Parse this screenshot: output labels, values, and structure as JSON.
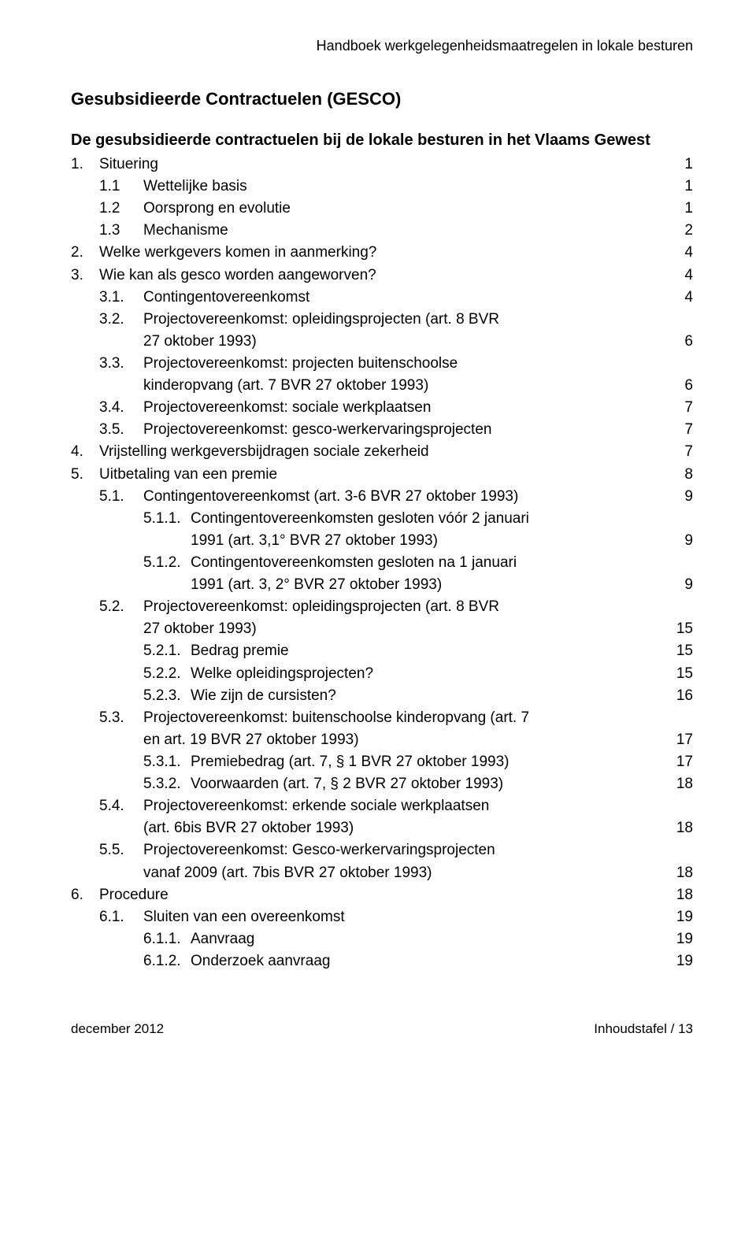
{
  "header": "Handboek werkgelegenheidsmaatregelen in lokale besturen",
  "section_title": "Gesubsidieerde Contractuelen (GESCO)",
  "subtitle": "De gesubsidieerde contractuelen bij de lokale besturen in het Vlaams Gewest",
  "entries": [
    {
      "lvl": 0,
      "num": "1.",
      "text": "Situering",
      "page": "1"
    },
    {
      "lvl": 1,
      "num": "1.1",
      "text": "Wettelijke basis",
      "page": "1"
    },
    {
      "lvl": 1,
      "num": "1.2",
      "text": "Oorsprong en evolutie",
      "page": "1"
    },
    {
      "lvl": 1,
      "num": "1.3",
      "text": "Mechanisme",
      "page": "2"
    },
    {
      "lvl": 0,
      "num": "2.",
      "text": "Welke werkgevers komen in aanmerking?",
      "page": "4"
    },
    {
      "lvl": 0,
      "num": "3.",
      "text": "Wie kan als gesco worden aangeworven?",
      "page": "4"
    },
    {
      "lvl": 1,
      "num": "3.1.",
      "text": "Contingentovereenkomst",
      "page": "4"
    },
    {
      "lvl": 1,
      "num": "3.2.",
      "text": "Projectovereenkomst: opleidingsprojecten (art. 8 BVR",
      "page": ""
    },
    {
      "lvl": 1,
      "num": "",
      "text": "27 oktober 1993)",
      "page": "6"
    },
    {
      "lvl": 1,
      "num": "3.3.",
      "text": "Projectovereenkomst: projecten buitenschoolse",
      "page": ""
    },
    {
      "lvl": 1,
      "num": "",
      "text": "kinderopvang (art. 7 BVR 27 oktober 1993)",
      "page": "6"
    },
    {
      "lvl": 1,
      "num": "3.4.",
      "text": "Projectovereenkomst: sociale werkplaatsen",
      "page": "7"
    },
    {
      "lvl": 1,
      "num": "3.5.",
      "text": "Projectovereenkomst: gesco-werkervaringsprojecten",
      "page": "7"
    },
    {
      "lvl": 0,
      "num": "4.",
      "text": "Vrijstelling werkgeversbijdragen sociale zekerheid",
      "page": "7"
    },
    {
      "lvl": 0,
      "num": "5.",
      "text": "Uitbetaling van een premie",
      "page": "8"
    },
    {
      "lvl": 1,
      "num": "5.1.",
      "text": "Contingentovereenkomst (art. 3-6 BVR 27 oktober 1993)",
      "page": "9"
    },
    {
      "lvl": 2,
      "num": "5.1.1.",
      "text": "Contingentovereenkomsten gesloten vóór 2 januari",
      "page": ""
    },
    {
      "lvl": 2,
      "num": "",
      "text": "1991 (art. 3,1° BVR 27 oktober 1993)",
      "page": "9"
    },
    {
      "lvl": 2,
      "num": "5.1.2.",
      "text": "Contingentovereenkomsten gesloten na 1 januari",
      "page": ""
    },
    {
      "lvl": 2,
      "num": "",
      "text": "1991 (art. 3, 2° BVR 27 oktober 1993)",
      "page": "9"
    },
    {
      "lvl": 1,
      "num": "5.2.",
      "text": "Projectovereenkomst: opleidingsprojecten (art. 8 BVR",
      "page": ""
    },
    {
      "lvl": 1,
      "num": "",
      "text": "27 oktober 1993)",
      "page": "15"
    },
    {
      "lvl": 2,
      "num": "5.2.1.",
      "text": "Bedrag premie",
      "page": "15"
    },
    {
      "lvl": 2,
      "num": "5.2.2.",
      "text": "Welke opleidingsprojecten?",
      "page": "15"
    },
    {
      "lvl": 2,
      "num": "5.2.3.",
      "text": "Wie zijn de cursisten?",
      "page": "16"
    },
    {
      "lvl": 1,
      "num": "5.3.",
      "text": "Projectovereenkomst: buitenschoolse kinderopvang (art. 7",
      "page": ""
    },
    {
      "lvl": 1,
      "num": "",
      "text": "en art. 19 BVR 27 oktober 1993)",
      "page": "17"
    },
    {
      "lvl": 2,
      "num": "5.3.1.",
      "text": "Premiebedrag (art. 7, § 1 BVR 27 oktober 1993)",
      "page": "17"
    },
    {
      "lvl": 2,
      "num": "5.3.2.",
      "text": "Voorwaarden (art. 7, § 2 BVR 27 oktober 1993)",
      "page": "18"
    },
    {
      "lvl": 1,
      "num": "5.4.",
      "text": "Projectovereenkomst: erkende sociale werkplaatsen",
      "page": ""
    },
    {
      "lvl": 1,
      "num": "",
      "text": "(art. 6bis BVR 27 oktober 1993)",
      "page": "18"
    },
    {
      "lvl": 1,
      "num": "5.5.",
      "text": "Projectovereenkomst: Gesco-werkervaringsprojecten",
      "page": ""
    },
    {
      "lvl": 1,
      "num": "",
      "text": "vanaf 2009 (art. 7bis BVR 27 oktober 1993)",
      "page": "18"
    },
    {
      "lvl": 0,
      "num": "6.",
      "text": "Procedure",
      "page": "18"
    },
    {
      "lvl": 1,
      "num": "6.1.",
      "text": "Sluiten van een overeenkomst",
      "page": "19"
    },
    {
      "lvl": 2,
      "num": "6.1.1.",
      "text": "Aanvraag",
      "page": "19"
    },
    {
      "lvl": 2,
      "num": "6.1.2.",
      "text": "Onderzoek aanvraag",
      "page": "19"
    }
  ],
  "footer_left": "december 2012",
  "footer_right": "Inhoudstafel / 13",
  "style": {
    "body_width": 960,
    "body_height": 1585,
    "font_family": "Lucida Sans",
    "text_color": "#000000",
    "background_color": "#ffffff",
    "header_fontsize": 18,
    "section_title_fontsize": 22,
    "subtitle_fontsize": 20,
    "body_fontsize": 19,
    "footer_fontsize": 17,
    "line_height": 1.48,
    "indent_lvl0": 0,
    "indent_lvl1": 36,
    "indent_lvl2": 92,
    "indent_lvl3": 152
  }
}
